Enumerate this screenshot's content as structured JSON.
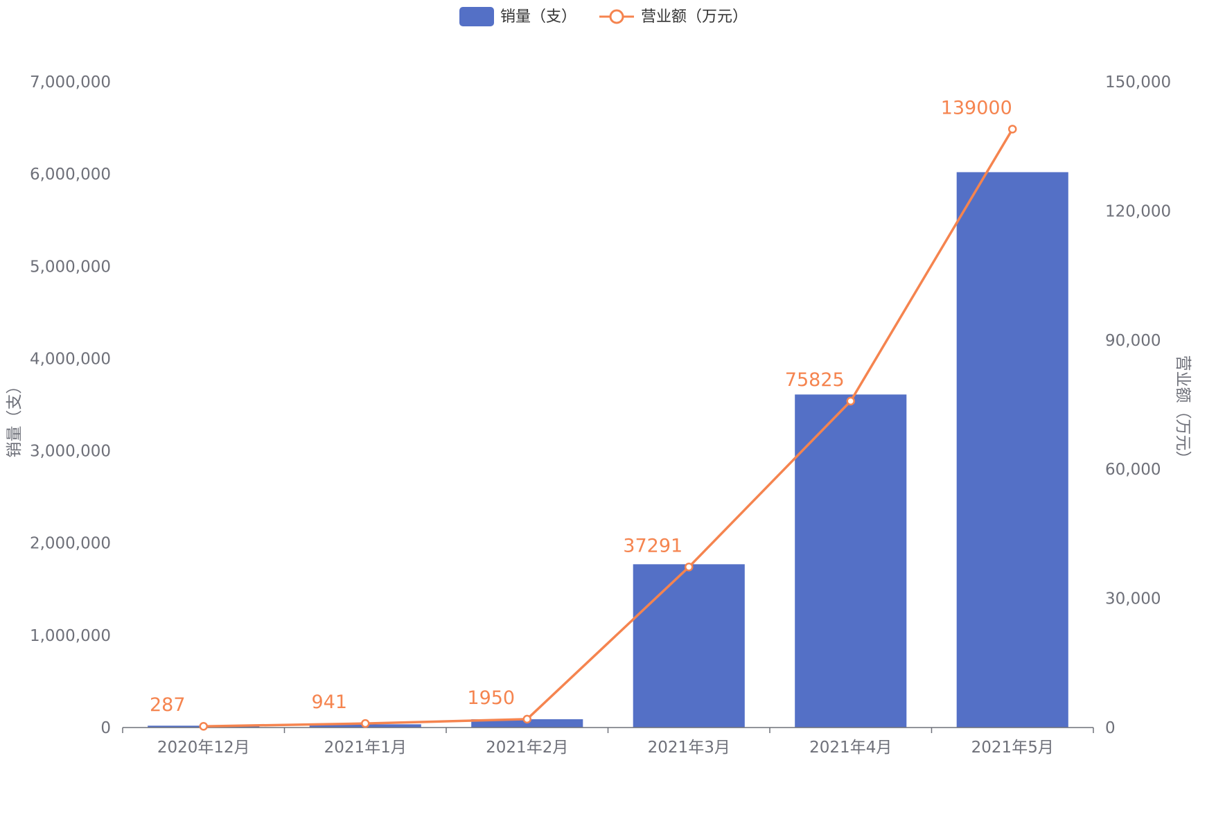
{
  "chart_data": {
    "type": "bar+line",
    "categories": [
      "2020年12月",
      "2021年1月",
      "2021年2月",
      "2021年3月",
      "2021年4月",
      "2021年5月"
    ],
    "series": [
      {
        "name": "销量（支）",
        "type": "bar",
        "axis": "left",
        "color": "#5470c6",
        "values": [
          20000,
          35000,
          90000,
          1770000,
          3610000,
          6020000
        ]
      },
      {
        "name": "营业额（万元）",
        "type": "line",
        "axis": "right",
        "color": "#f5844f",
        "values": [
          287,
          941,
          1950,
          37291,
          75825,
          139000
        ],
        "labels": [
          "287",
          "941",
          "1950",
          "37291",
          "75825",
          "139000"
        ]
      }
    ],
    "y_left": {
      "label": "销量（支）",
      "min": 0,
      "max": 7000000,
      "ticks": [
        0,
        1000000,
        2000000,
        3000000,
        4000000,
        5000000,
        6000000,
        7000000
      ],
      "tick_labels": [
        "0",
        "1,000,000",
        "2,000,000",
        "3,000,000",
        "4,000,000",
        "5,000,000",
        "6,000,000",
        "7,000,000"
      ]
    },
    "y_right": {
      "label": "营业额（万元）",
      "min": 0,
      "max": 150000,
      "ticks": [
        0,
        30000,
        60000,
        90000,
        120000,
        150000
      ],
      "tick_labels": [
        "0",
        "30,000",
        "60,000",
        "90,000",
        "120,000",
        "150,000"
      ]
    },
    "legend": {
      "position": "top-center",
      "items": [
        "销量（支）",
        "营业额（万元）"
      ]
    },
    "grid": false
  }
}
